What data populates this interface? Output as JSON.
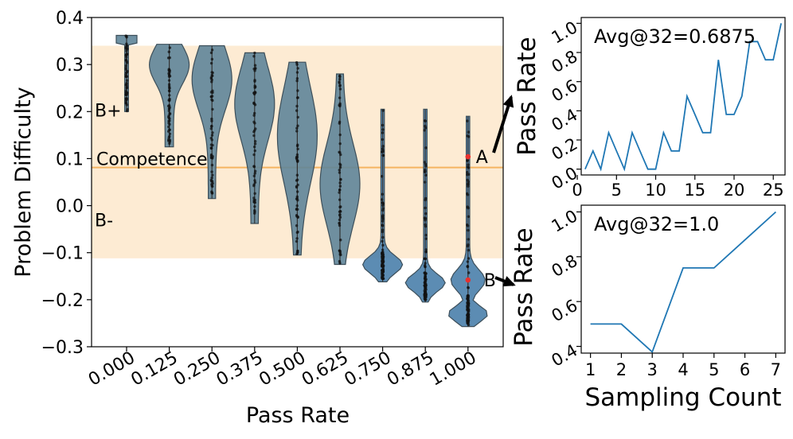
{
  "chart_data": [
    {
      "type": "violin",
      "xlabel": "Pass Rate",
      "ylabel": "Problem Difficulty",
      "ylim": [
        -0.3,
        0.4
      ],
      "yticks": [
        "0.4",
        "0.3",
        "0.2",
        "0.1",
        "0.0",
        "−0.1",
        "−0.2",
        "−0.3"
      ],
      "ytick_values": [
        0.4,
        0.3,
        0.2,
        0.1,
        0.0,
        -0.1,
        -0.2,
        -0.3
      ],
      "categories": [
        "0.000",
        "0.125",
        "0.250",
        "0.375",
        "0.500",
        "0.625",
        "0.750",
        "0.875",
        "1.000"
      ],
      "violins": [
        {
          "min": 0.2,
          "max": 0.362,
          "mode": 0.36
        },
        {
          "min": 0.125,
          "max": 0.343,
          "mode": 0.3
        },
        {
          "min": 0.015,
          "max": 0.34,
          "mode": 0.27
        },
        {
          "min": -0.038,
          "max": 0.325,
          "mode": 0.22
        },
        {
          "min": -0.105,
          "max": 0.305,
          "mode": 0.15
        },
        {
          "min": -0.125,
          "max": 0.28,
          "mode": 0.05
        },
        {
          "min": -0.162,
          "max": 0.205,
          "mode": -0.13
        },
        {
          "min": -0.205,
          "max": 0.205,
          "mode": -0.18
        },
        {
          "min": -0.257,
          "max": 0.19,
          "mode": -0.2
        }
      ],
      "band": {
        "low": -0.112,
        "high": 0.34,
        "color": "#fdebd3",
        "upper_label": "B+",
        "lower_label": "B-"
      },
      "competence": {
        "value": 0.081,
        "label": "Competence",
        "color": "#f5b461"
      },
      "marked_points": [
        {
          "label": "A",
          "x_index": 8,
          "y": 0.104,
          "color": "#e8312f"
        },
        {
          "label": "B",
          "x_index": 8,
          "y": -0.158,
          "color": "#e8312f"
        }
      ]
    },
    {
      "type": "line",
      "annotation": "Avg@32=0.6875",
      "ylabel": "Pass Rate",
      "xlim": [
        0.5,
        26.5
      ],
      "ylim": [
        -0.04,
        1.04
      ],
      "xticks": [
        "0",
        "5",
        "10",
        "15",
        "20",
        "25"
      ],
      "xtick_values": [
        0,
        5,
        10,
        15,
        20,
        25
      ],
      "yticks": [
        "0.0",
        "0.2",
        "0.4",
        "0.6",
        "0.8",
        "1.0"
      ],
      "ytick_values": [
        0.0,
        0.2,
        0.4,
        0.6,
        0.8,
        1.0
      ],
      "x": [
        1,
        2,
        3,
        4,
        5,
        6,
        7,
        8,
        9,
        10,
        11,
        12,
        13,
        14,
        15,
        16,
        17,
        18,
        19,
        20,
        21,
        22,
        23,
        24,
        25,
        26
      ],
      "y": [
        0.0,
        0.125,
        0.0,
        0.25,
        0.125,
        0.0,
        0.25,
        0.125,
        0.0,
        0.0,
        0.25,
        0.125,
        0.125,
        0.5,
        0.375,
        0.25,
        0.25,
        0.75,
        0.375,
        0.375,
        0.5,
        0.875,
        0.875,
        0.75,
        0.75,
        1.0
      ],
      "color": "#1f77b4"
    },
    {
      "type": "line",
      "annotation": "Avg@32=1.0",
      "ylabel": "Pass Rate",
      "xlabel": "Sampling Count",
      "xlim": [
        0.7,
        7.3
      ],
      "ylim": [
        0.37,
        1.03
      ],
      "xticks": [
        "1",
        "2",
        "3",
        "4",
        "5",
        "6",
        "7"
      ],
      "xtick_values": [
        1,
        2,
        3,
        4,
        5,
        6,
        7
      ],
      "yticks": [
        "0.4",
        "0.6",
        "0.8",
        "1.0"
      ],
      "ytick_values": [
        0.4,
        0.6,
        0.8,
        1.0
      ],
      "x": [
        1,
        2,
        3,
        4,
        5,
        6,
        7
      ],
      "y": [
        0.5,
        0.5,
        0.375,
        0.75,
        0.75,
        0.875,
        1.0
      ],
      "color": "#1f77b4"
    }
  ]
}
